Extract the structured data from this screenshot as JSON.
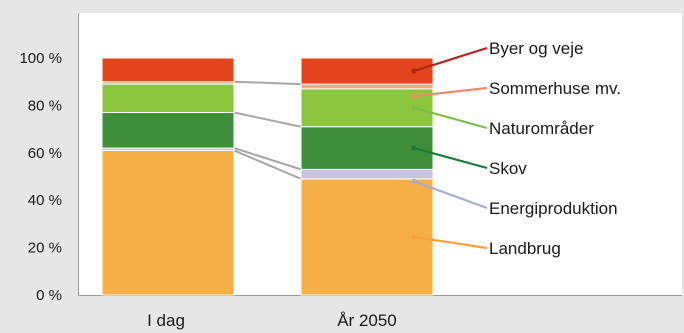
{
  "chart_data": {
    "type": "bar",
    "stacked": true,
    "categories": [
      "I dag",
      "År 2050"
    ],
    "ylim": [
      0,
      100
    ],
    "yticks": [
      "0 %",
      "20 %",
      "40 %",
      "60 %",
      "80 %",
      "100 %"
    ],
    "grid": false,
    "legend_position": "right",
    "series": [
      {
        "name": "Landbrug",
        "values": [
          61,
          49
        ],
        "color": "#f7b045"
      },
      {
        "name": "Energiproduktion",
        "values": [
          1,
          4
        ],
        "color": "#c3c5e0"
      },
      {
        "name": "Skov",
        "values": [
          15,
          18
        ],
        "color": "#3e8e3a"
      },
      {
        "name": "Naturområder",
        "values": [
          12,
          16
        ],
        "color": "#8cc63f"
      },
      {
        "name": "Sommerhuse mv.",
        "values": [
          1,
          2
        ],
        "color": "#f5a783"
      },
      {
        "name": "Byer og veje",
        "values": [
          10,
          11
        ],
        "color": "#e2441c"
      }
    ],
    "legend_order": [
      "Byer og veje",
      "Sommerhuse mv.",
      "Naturområder",
      "Skov",
      "Energiproduktion",
      "Landbrug"
    ],
    "legend_line_colors": {
      "Byer og veje": "#b5221e",
      "Sommerhuse mv.": "#f28a6a",
      "Naturområder": "#7cc04a",
      "Skov": "#1e7a34",
      "Energiproduktion": "#a9acd0",
      "Landbrug": "#f7a23c"
    }
  }
}
